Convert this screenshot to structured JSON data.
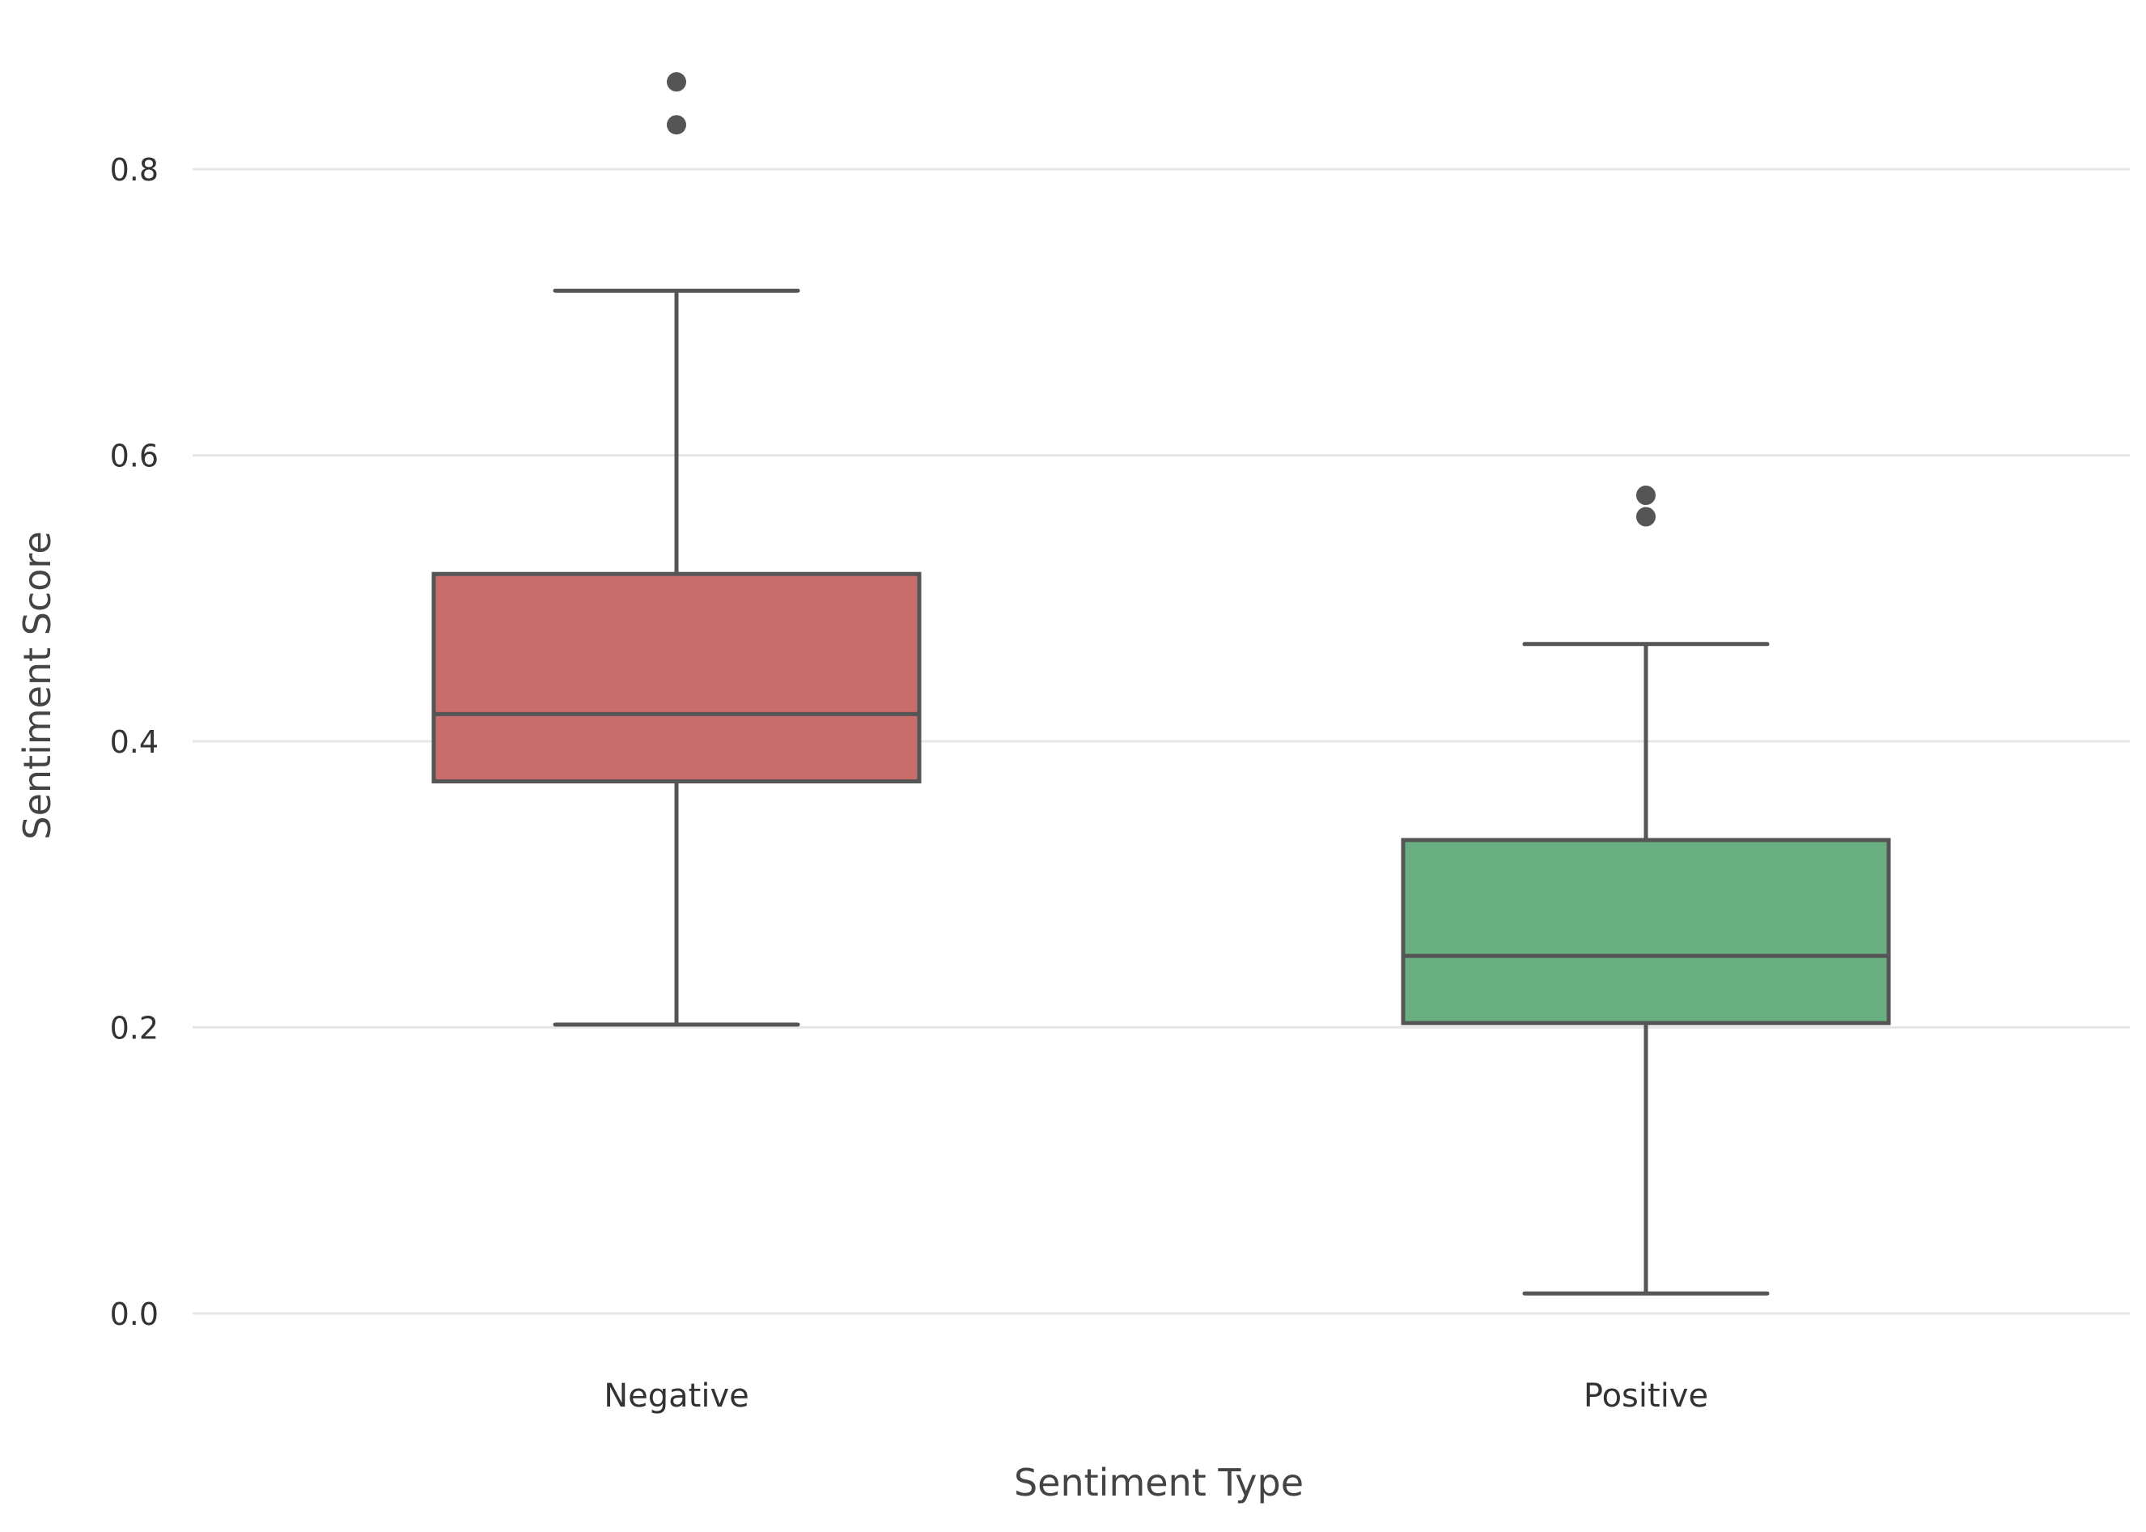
{
  "chart_data": {
    "type": "box",
    "title": "",
    "xlabel": "Sentiment Type",
    "ylabel": "Sentiment Score",
    "ylim": [
      -0.03,
      0.9
    ],
    "yticks": [
      0.0,
      0.2,
      0.4,
      0.6,
      0.8
    ],
    "ytick_labels": [
      "0.0",
      "0.2",
      "0.4",
      "0.6",
      "0.8"
    ],
    "grid": "horizontal",
    "legend": "none",
    "categories": [
      "Negative",
      "Positive"
    ],
    "boxes": [
      {
        "category": "Negative",
        "color": "#c96c6c",
        "whisker_low": 0.202,
        "q1": 0.372,
        "median": 0.419,
        "q3": 0.517,
        "whisker_high": 0.715,
        "outliers": [
          0.831,
          0.861
        ]
      },
      {
        "category": "Positive",
        "color": "#6aaf82",
        "whisker_low": 0.014,
        "q1": 0.203,
        "median": 0.25,
        "q3": 0.331,
        "whisker_high": 0.468,
        "outliers": [
          0.557,
          0.572
        ]
      }
    ],
    "line_color": "#555555",
    "grid_color": "#e6e6e6",
    "text_color": "#333333"
  }
}
